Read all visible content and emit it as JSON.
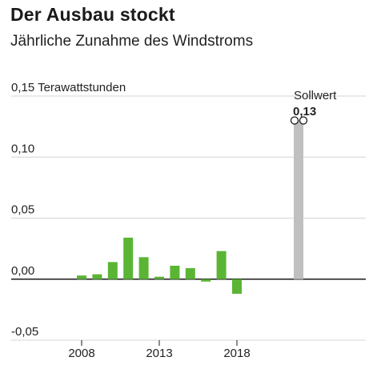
{
  "chart_data": {
    "type": "bar",
    "title": "Der Ausbau stockt",
    "subtitle": "Jährliche Zunahme des Windstroms",
    "ylabel_unit": "Terawattstunden",
    "ylim": [
      -0.05,
      0.15
    ],
    "yticks": [
      {
        "value": 0.15,
        "label": "0,15"
      },
      {
        "value": 0.1,
        "label": "0,10"
      },
      {
        "value": 0.05,
        "label": "0,05"
      },
      {
        "value": 0.0,
        "label": "0,00"
      },
      {
        "value": -0.05,
        "label": "-0,05"
      }
    ],
    "xticks": [
      "2008",
      "2013",
      "2018"
    ],
    "categories": [
      "2008",
      "2009",
      "2010",
      "2011",
      "2012",
      "2013",
      "2014",
      "2015",
      "2016",
      "2017",
      "2018",
      "2019",
      "2020",
      "2021",
      "2022",
      "2023",
      "2024",
      "2025",
      "2026",
      "2027",
      "2028",
      "2029",
      "2030",
      "2031"
    ],
    "series": [
      {
        "values": [
          0.003,
          0.004,
          0.014,
          0.034,
          0.018,
          0.002,
          0.011,
          0.009,
          -0.002,
          0.023,
          -0.012,
          null,
          null,
          null,
          null,
          null,
          null,
          null,
          null,
          null,
          null,
          null,
          null,
          null
        ],
        "color": "#5ab534"
      }
    ],
    "target": {
      "label": "Sollwert",
      "value_label": "0,13",
      "value": 0.13,
      "color": "#c0c0c0"
    },
    "grid": true
  }
}
